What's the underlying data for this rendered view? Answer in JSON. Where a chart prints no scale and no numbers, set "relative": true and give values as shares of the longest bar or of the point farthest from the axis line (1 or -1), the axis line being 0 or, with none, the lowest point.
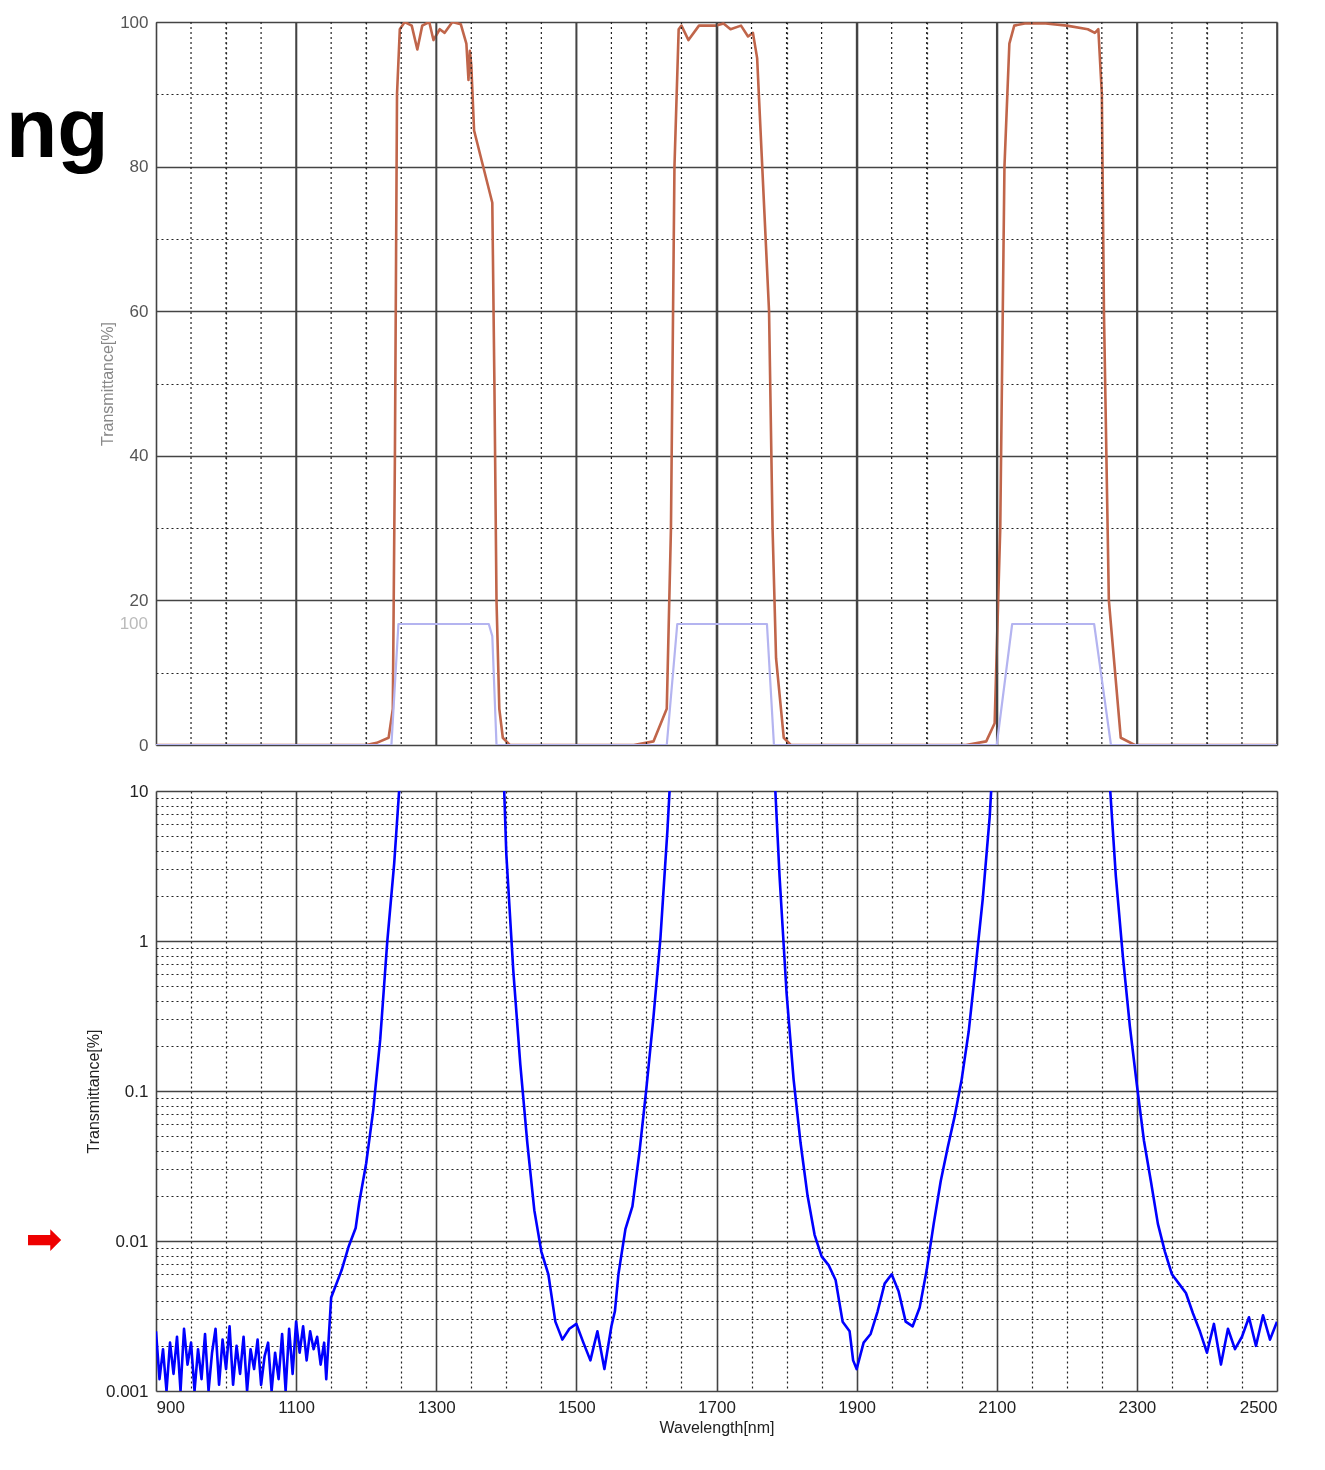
{
  "chart_data": [
    {
      "type": "line",
      "ylabel": "Transmittance[%]",
      "annotations": [
        "ng"
      ],
      "tick_labels": "y",
      "grid": true,
      "xlim": [
        900,
        2500
      ],
      "ylim": [
        0,
        100
      ],
      "xticks": [
        900,
        {
          "value": 950,
          "label": null
        },
        {
          "value": 1000,
          "label": null
        },
        {
          "value": 1050,
          "label": null
        },
        1100,
        {
          "value": 1150,
          "label": null
        },
        {
          "value": 1200,
          "label": null
        },
        {
          "value": 1250,
          "label": null
        },
        1300,
        {
          "value": 1350,
          "label": null
        },
        {
          "value": 1400,
          "label": null
        },
        {
          "value": 1450,
          "label": null
        },
        1500,
        {
          "value": 1550,
          "label": null
        },
        {
          "value": 1600,
          "label": null
        },
        {
          "value": 1650,
          "label": null
        },
        1700,
        {
          "value": 1750,
          "label": null
        },
        {
          "value": 1800,
          "label": null
        },
        {
          "value": 1850,
          "label": null
        },
        1900,
        {
          "value": 1950,
          "label": null
        },
        {
          "value": 2000,
          "label": null
        },
        {
          "value": 2050,
          "label": null
        },
        2100,
        {
          "value": 2150,
          "label": null
        },
        {
          "value": 2200,
          "label": null
        },
        {
          "value": 2250,
          "label": null
        },
        2300,
        {
          "value": 2350,
          "label": null
        },
        {
          "value": 2400,
          "label": null
        },
        {
          "value": 2450,
          "label": null
        },
        2500
      ],
      "yticks": [
        0,
        {
          "value": 10,
          "label": null
        },
        20,
        {
          "value": 30,
          "label": null
        },
        40,
        {
          "value": 50,
          "label": null
        },
        60,
        {
          "value": 70,
          "label": null
        },
        80,
        {
          "value": 90,
          "label": null
        },
        100
      ],
      "series": [
        {
          "color": "#c0654a",
          "x": [
            900,
            1200,
            1215,
            1232,
            1238,
            1241,
            1244,
            1248,
            1255,
            1265,
            1273,
            1280,
            1290,
            1296,
            1305,
            1312,
            1323,
            1335,
            1343,
            1346,
            1348,
            1350,
            1354,
            1380,
            1383,
            1386,
            1390,
            1395,
            1405,
            1582,
            1610,
            1629,
            1635,
            1640,
            1646,
            1650,
            1660,
            1675,
            1700,
            1710,
            1720,
            1735,
            1745,
            1752,
            1758,
            1775,
            1780,
            1785,
            1796,
            1806,
            2056,
            2085,
            2097,
            2105,
            2111,
            2118,
            2125,
            2140,
            2170,
            2200,
            2230,
            2240,
            2245,
            2250,
            2253,
            2260,
            2277,
            2297,
            2500
          ],
          "values": [
            0,
            0,
            0.3,
            1,
            5,
            40,
            90,
            99,
            100,
            99.5,
            96.2,
            99.5,
            100,
            97.5,
            99,
            98.5,
            100,
            99.7,
            97,
            92,
            96,
            94,
            85,
            75,
            50,
            20,
            5,
            1,
            0,
            0,
            0.5,
            5,
            30,
            80,
            99,
            99.5,
            97.5,
            99.5,
            99.5,
            99.8,
            99,
            99.5,
            98,
            98.5,
            95,
            60,
            30,
            12,
            1,
            0,
            0,
            0.5,
            3,
            30,
            80,
            97,
            99.5,
            99.8,
            99.8,
            99.5,
            99,
            98.5,
            99,
            90,
            60,
            20,
            1,
            0,
            0
          ]
        }
      ]
    },
    {
      "type": "line",
      "relative": true,
      "annotations": [
        "100"
      ],
      "tick_labels": false,
      "xlim": [
        900,
        2500
      ],
      "series": [
        {
          "color": "#b4b4f0",
          "x": [
            900,
            1236,
            1246,
            1375,
            1380,
            1386,
            1629,
            1644,
            1772,
            1782,
            2100,
            2122,
            2239,
            2263,
            2500
          ],
          "values": [
            0,
            0,
            1,
            1,
            0.9,
            0,
            0,
            1,
            1,
            0,
            0,
            1,
            1,
            0,
            0
          ]
        }
      ]
    },
    {
      "type": "line",
      "xlabel": "Wavelength[nm]",
      "ylabel": "Transmittance[%]",
      "log": "y",
      "grid": true,
      "xlim": [
        900,
        2500
      ],
      "ylim": [
        0.001,
        10
      ],
      "annotations": [
        "➡"
      ],
      "xticks": [
        900,
        {
          "value": 950,
          "label": null
        },
        {
          "value": 1000,
          "label": null
        },
        {
          "value": 1050,
          "label": null
        },
        1100,
        {
          "value": 1150,
          "label": null
        },
        {
          "value": 1200,
          "label": null
        },
        {
          "value": 1250,
          "label": null
        },
        1300,
        {
          "value": 1350,
          "label": null
        },
        {
          "value": 1400,
          "label": null
        },
        {
          "value": 1450,
          "label": null
        },
        1500,
        {
          "value": 1550,
          "label": null
        },
        {
          "value": 1600,
          "label": null
        },
        {
          "value": 1650,
          "label": null
        },
        1700,
        {
          "value": 1750,
          "label": null
        },
        {
          "value": 1800,
          "label": null
        },
        {
          "value": 1850,
          "label": null
        },
        1900,
        {
          "value": 1950,
          "label": null
        },
        {
          "value": 2000,
          "label": null
        },
        {
          "value": 2050,
          "label": null
        },
        2100,
        {
          "value": 2150,
          "label": null
        },
        {
          "value": 2200,
          "label": null
        },
        {
          "value": 2250,
          "label": null
        },
        2300,
        {
          "value": 2350,
          "label": null
        },
        {
          "value": 2400,
          "label": null
        },
        {
          "value": 2450,
          "label": null
        },
        2500
      ],
      "yticks": [
        0.001,
        {
          "value": 0.002,
          "label": null
        },
        {
          "value": 0.003,
          "label": null
        },
        {
          "value": 0.004,
          "label": null
        },
        {
          "value": 0.005,
          "label": null
        },
        {
          "value": 0.006,
          "label": null
        },
        {
          "value": 0.007,
          "label": null
        },
        {
          "value": 0.008,
          "label": null
        },
        {
          "value": 0.009,
          "label": null
        },
        0.01,
        {
          "value": 0.02,
          "label": null
        },
        {
          "value": 0.03,
          "label": null
        },
        {
          "value": 0.04,
          "label": null
        },
        {
          "value": 0.05,
          "label": null
        },
        {
          "value": 0.06,
          "label": null
        },
        {
          "value": 0.07,
          "label": null
        },
        {
          "value": 0.08,
          "label": null
        },
        {
          "value": 0.09,
          "label": null
        },
        0.1,
        {
          "value": 0.2,
          "label": null
        },
        {
          "value": 0.3,
          "label": null
        },
        {
          "value": 0.4,
          "label": null
        },
        {
          "value": 0.5,
          "label": null
        },
        {
          "value": 0.6,
          "label": null
        },
        {
          "value": 0.7,
          "label": null
        },
        {
          "value": 0.8,
          "label": null
        },
        {
          "value": 0.9,
          "label": null
        },
        1,
        {
          "value": 2,
          "label": null
        },
        {
          "value": 3,
          "label": null
        },
        {
          "value": 4,
          "label": null
        },
        {
          "value": 5,
          "label": null
        },
        {
          "value": 6,
          "label": null
        },
        {
          "value": 7,
          "label": null
        },
        {
          "value": 8,
          "label": null
        },
        {
          "value": 9,
          "label": null
        },
        10
      ],
      "series": [
        {
          "color": "#0000ff",
          "x": [
            900,
            905,
            910,
            915,
            920,
            925,
            930,
            935,
            940,
            945,
            950,
            955,
            960,
            965,
            970,
            975,
            980,
            985,
            990,
            995,
            1000,
            1005,
            1010,
            1015,
            1020,
            1025,
            1030,
            1035,
            1040,
            1045,
            1050,
            1055,
            1060,
            1065,
            1070,
            1075,
            1080,
            1085,
            1090,
            1095,
            1100,
            1105,
            1110,
            1115,
            1120,
            1125,
            1130,
            1135,
            1140,
            1143,
            1150,
            1165,
            1175,
            1185,
            1190,
            1200,
            1210,
            1220,
            1230,
            1240,
            1247,
            1300,
            1397,
            1400,
            1410,
            1420,
            1430,
            1440,
            1450,
            1460,
            1470,
            1480,
            1490,
            1500,
            1510,
            1520,
            1530,
            1540,
            1550,
            1555,
            1560,
            1570,
            1580,
            1590,
            1600,
            1610,
            1620,
            1630,
            1633,
            1700,
            1784,
            1790,
            1800,
            1810,
            1820,
            1830,
            1840,
            1850,
            1860,
            1870,
            1880,
            1890,
            1895,
            1900,
            1910,
            1920,
            1930,
            1940,
            1950,
            1960,
            1970,
            1980,
            1990,
            2000,
            2010,
            2020,
            2030,
            2040,
            2050,
            2060,
            2070,
            2080,
            2090,
            2092,
            2180,
            2262,
            2270,
            2280,
            2290,
            2300,
            2310,
            2320,
            2330,
            2340,
            2350,
            2360,
            2370,
            2380,
            2390,
            2400,
            2410,
            2420,
            2430,
            2440,
            2450,
            2460,
            2470,
            2480,
            2490,
            2500
          ],
          "values": [
            0.0025,
            0.0012,
            0.0019,
            0.001,
            0.0021,
            0.0013,
            0.0023,
            0.001,
            0.0026,
            0.0015,
            0.0021,
            0.001,
            0.0019,
            0.0012,
            0.0024,
            0.001,
            0.0018,
            0.0026,
            0.0011,
            0.0022,
            0.0014,
            0.0027,
            0.0011,
            0.002,
            0.0013,
            0.0023,
            0.001,
            0.0019,
            0.0014,
            0.0022,
            0.0011,
            0.0017,
            0.0021,
            0.001,
            0.0018,
            0.0012,
            0.0024,
            0.001,
            0.0026,
            0.0013,
            0.0029,
            0.0018,
            0.0027,
            0.0016,
            0.0025,
            0.0019,
            0.0023,
            0.0015,
            0.0021,
            0.0012,
            0.0042,
            0.0064,
            0.0092,
            0.0122,
            0.018,
            0.033,
            0.074,
            0.22,
            0.98,
            3.3,
            10,
            null,
            10,
            3.8,
            0.63,
            0.15,
            0.045,
            0.016,
            0.0085,
            0.006,
            0.0029,
            0.0022,
            0.0026,
            0.0028,
            0.0021,
            0.0016,
            0.0025,
            0.0014,
            0.0027,
            0.0034,
            0.006,
            0.012,
            0.017,
            0.039,
            0.105,
            0.31,
            1.05,
            5.5,
            10,
            null,
            10,
            2.7,
            0.45,
            0.12,
            0.045,
            0.02,
            0.011,
            0.0079,
            0.0069,
            0.0055,
            0.0029,
            0.0025,
            0.0016,
            0.0014,
            0.0021,
            0.0024,
            0.0034,
            0.0052,
            0.006,
            0.0046,
            0.0029,
            0.0027,
            0.0036,
            0.0064,
            0.013,
            0.025,
            0.042,
            0.068,
            0.12,
            0.25,
            0.68,
            1.9,
            6.8,
            10,
            null,
            10,
            2.7,
            0.79,
            0.27,
            0.11,
            0.047,
            0.025,
            0.013,
            0.0085,
            0.006,
            0.0052,
            0.0045,
            0.0033,
            0.0025,
            0.0018,
            0.0028,
            0.0015,
            0.0026,
            0.0019,
            0.0023,
            0.0031,
            0.002,
            0.0032,
            0.0022,
            0.0029
          ]
        }
      ]
    }
  ]
}
